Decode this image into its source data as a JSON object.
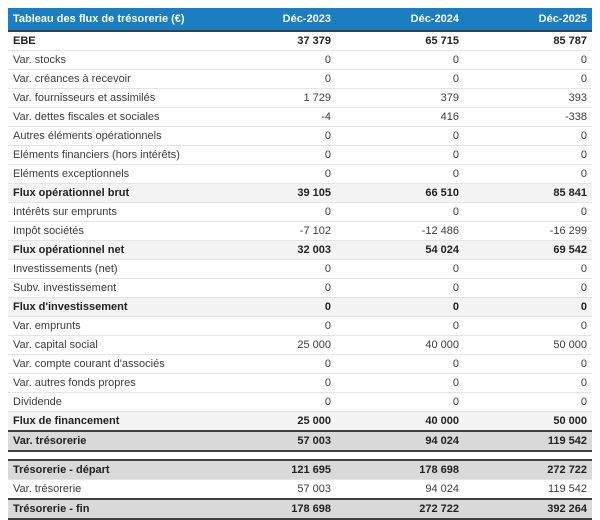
{
  "table": {
    "title": "Tableau des flux de trésorerie (€)",
    "columns": [
      "Déc-2023",
      "Déc-2024",
      "Déc-2025"
    ],
    "rows": [
      {
        "label": "EBE",
        "values": [
          "37 379",
          "65 715",
          "85 787"
        ],
        "style": "bold"
      },
      {
        "label": "Var. stocks",
        "values": [
          "0",
          "0",
          "0"
        ],
        "style": "normal"
      },
      {
        "label": "Var. créances à recevoir",
        "values": [
          "0",
          "0",
          "0"
        ],
        "style": "normal"
      },
      {
        "label": "Var. fournisseurs et assimilés",
        "values": [
          "1 729",
          "379",
          "393"
        ],
        "style": "normal"
      },
      {
        "label": "Var. dettes fiscales et sociales",
        "values": [
          "-4",
          "416",
          "-338"
        ],
        "style": "normal"
      },
      {
        "label": "Autres éléments opérationnels",
        "values": [
          "0",
          "0",
          "0"
        ],
        "style": "normal"
      },
      {
        "label": "Eléments financiers (hors intérêts)",
        "values": [
          "0",
          "0",
          "0"
        ],
        "style": "normal"
      },
      {
        "label": "Eléments exceptionnels",
        "values": [
          "0",
          "0",
          "0"
        ],
        "style": "normal"
      },
      {
        "label": "Flux opérationnel brut",
        "values": [
          "39 105",
          "66 510",
          "85 841"
        ],
        "style": "subtotal"
      },
      {
        "label": "Intérêts sur emprunts",
        "values": [
          "0",
          "0",
          "0"
        ],
        "style": "normal"
      },
      {
        "label": "Impôt sociétés",
        "values": [
          "-7 102",
          "-12 486",
          "-16 299"
        ],
        "style": "normal"
      },
      {
        "label": "Flux opérationnel net",
        "values": [
          "32 003",
          "54 024",
          "69 542"
        ],
        "style": "subtotal"
      },
      {
        "label": "Investissements (net)",
        "values": [
          "0",
          "0",
          "0"
        ],
        "style": "normal"
      },
      {
        "label": "Subv. investissement",
        "values": [
          "0",
          "0",
          "0"
        ],
        "style": "normal"
      },
      {
        "label": "Flux d'investissement",
        "values": [
          "0",
          "0",
          "0"
        ],
        "style": "subtotal"
      },
      {
        "label": "Var. emprunts",
        "values": [
          "0",
          "0",
          "0"
        ],
        "style": "normal"
      },
      {
        "label": "Var. capital social",
        "values": [
          "25 000",
          "40 000",
          "50 000"
        ],
        "style": "normal"
      },
      {
        "label": "Var. compte courant d'associés",
        "values": [
          "0",
          "0",
          "0"
        ],
        "style": "normal"
      },
      {
        "label": "Var. autres fonds propres",
        "values": [
          "0",
          "0",
          "0"
        ],
        "style": "normal"
      },
      {
        "label": "Dividende",
        "values": [
          "0",
          "0",
          "0"
        ],
        "style": "normal"
      },
      {
        "label": "Flux de financement",
        "values": [
          "25 000",
          "40 000",
          "50 000"
        ],
        "style": "subtotal"
      },
      {
        "label": "Var. trésorerie",
        "values": [
          "57 003",
          "94 024",
          "119 542"
        ],
        "style": "total"
      }
    ],
    "summary_rows": [
      {
        "label": "Trésorerie - départ",
        "values": [
          "121 695",
          "178 698",
          "272 722"
        ],
        "style": "total"
      },
      {
        "label": "Var. trésorerie",
        "values": [
          "57 003",
          "94 024",
          "119 542"
        ],
        "style": "normal"
      },
      {
        "label": "Trésorerie - fin",
        "values": [
          "178 698",
          "272 722",
          "392 264"
        ],
        "style": "total"
      }
    ],
    "colors": {
      "header_bg": "#1b7dc2",
      "header_text": "#ffffff",
      "subtotal_row_bg": "#f3f3f3",
      "total_row_bg": "#d9d9d9",
      "dark_border": "#3f3f3f",
      "light_border": "#e4e4e4",
      "row_text": "#3c3c3c",
      "bold_text": "#222222"
    }
  }
}
